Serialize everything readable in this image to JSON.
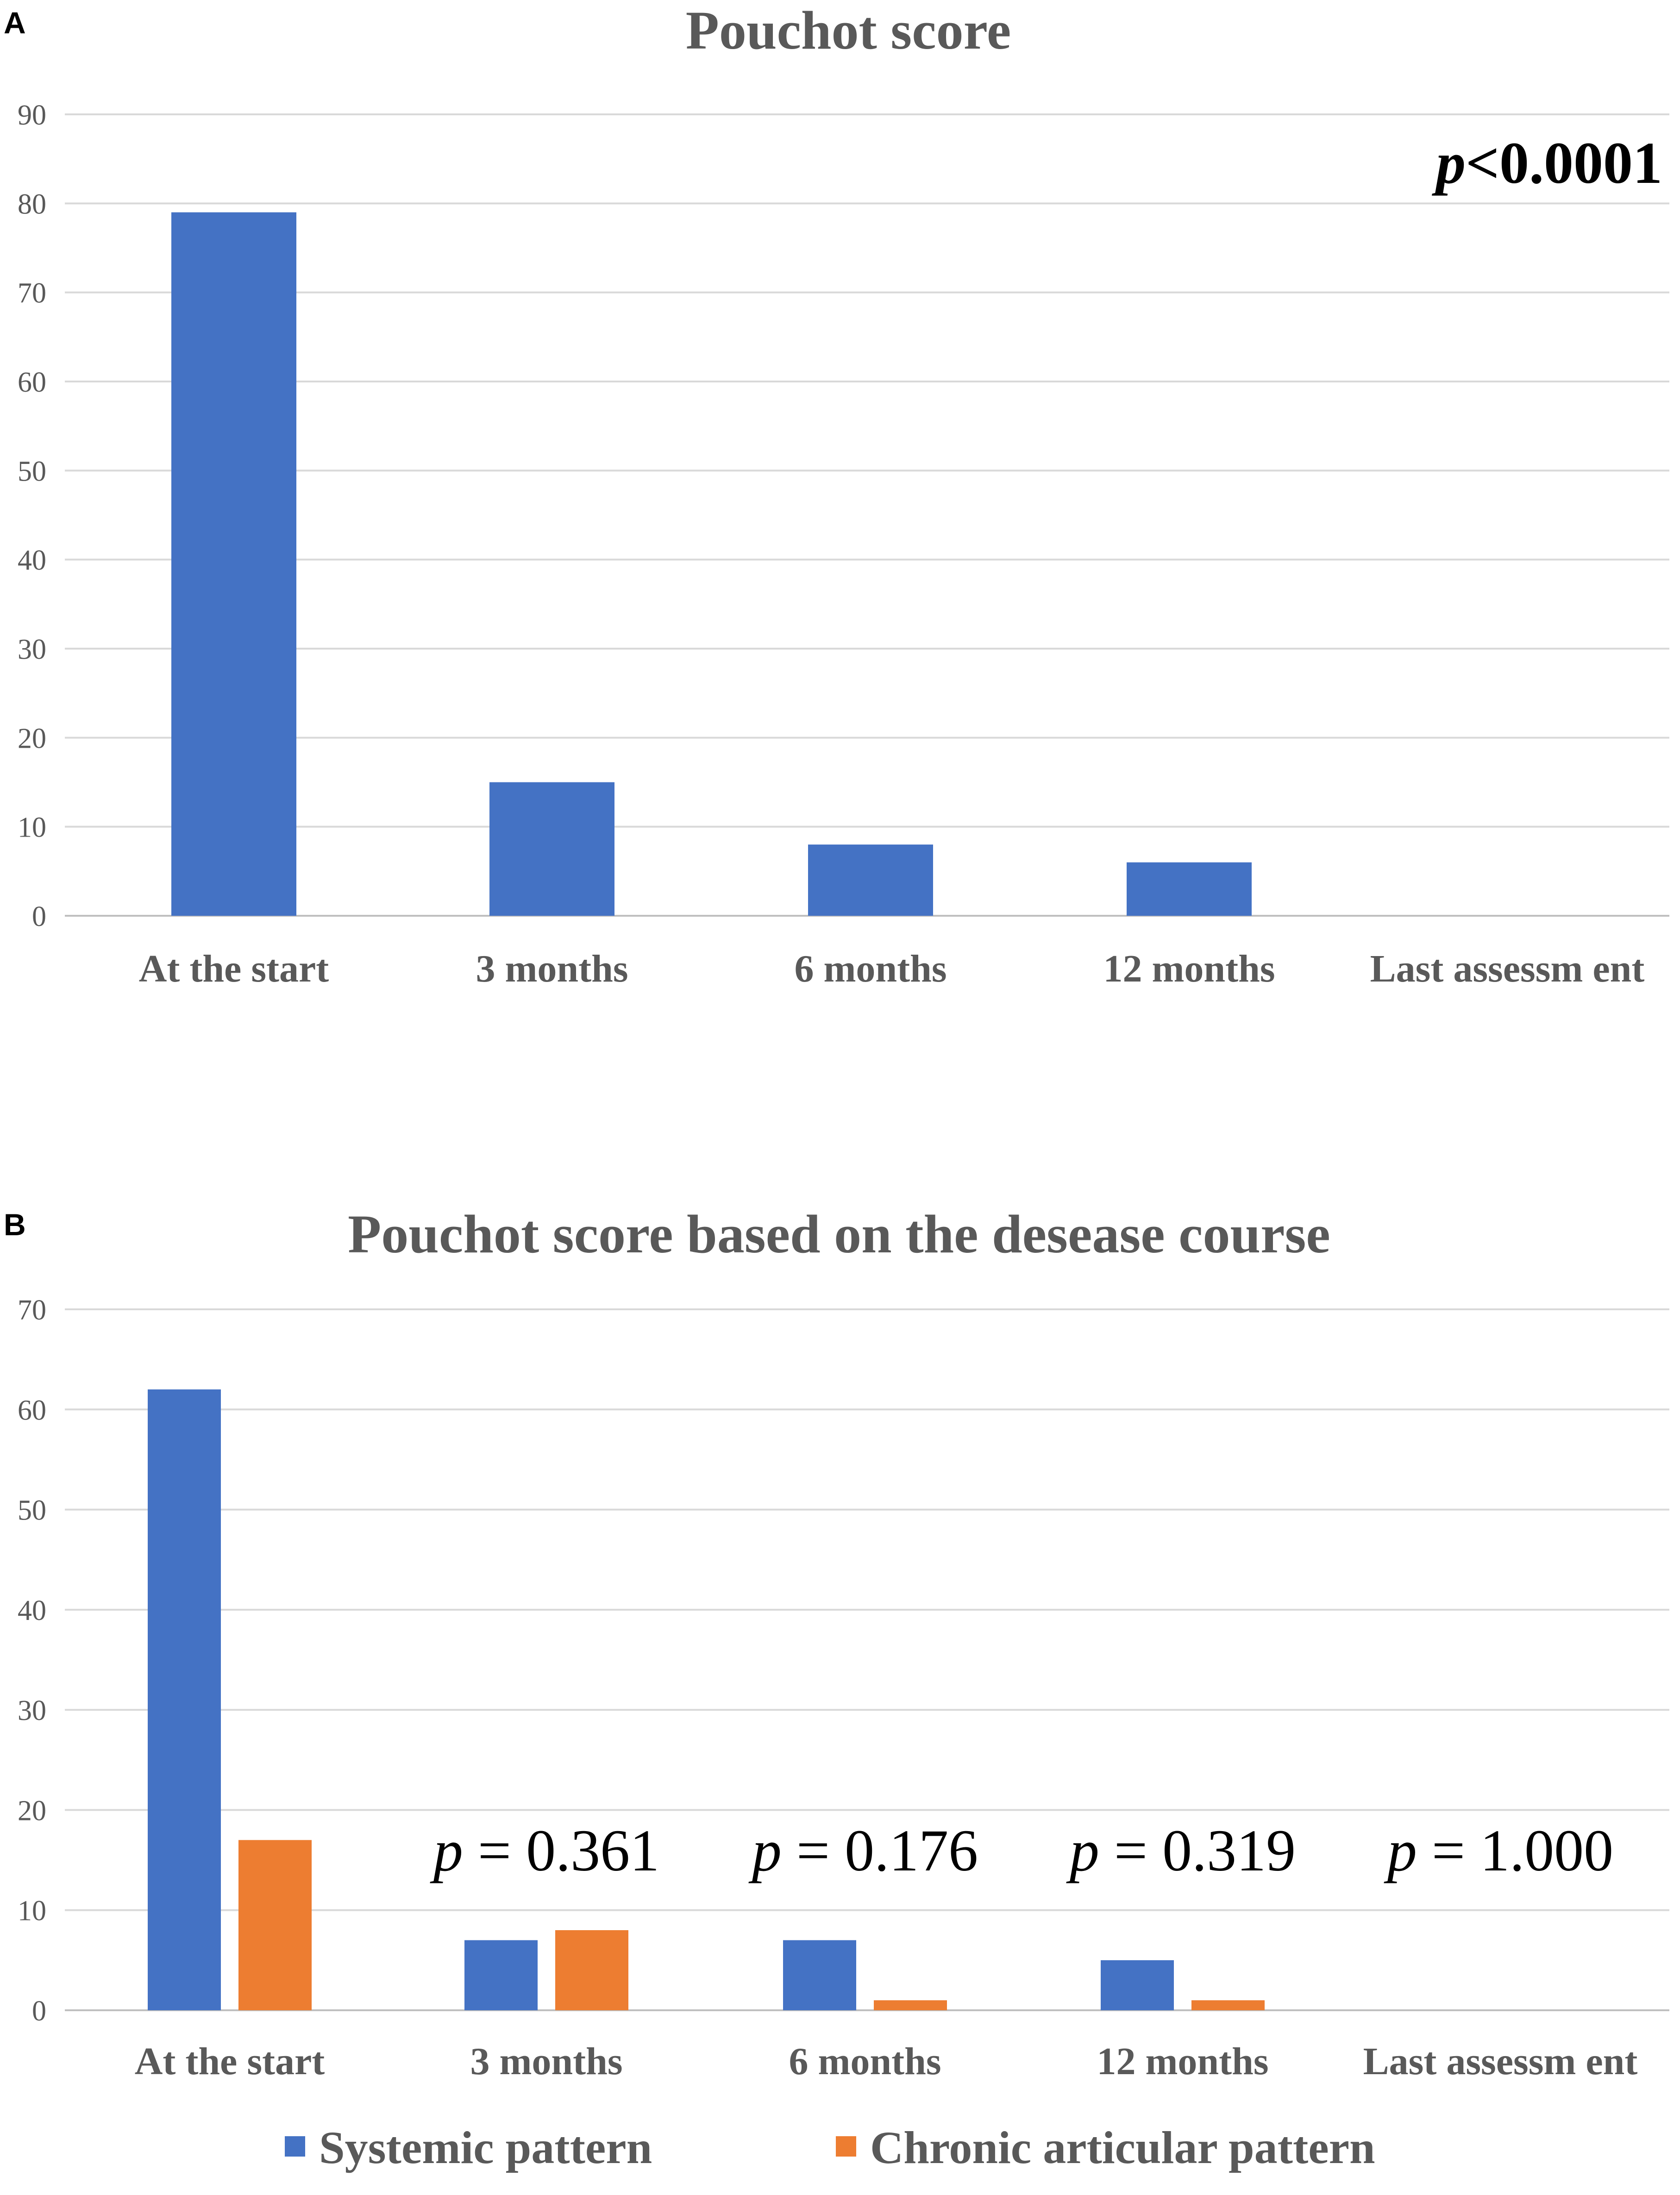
{
  "chart_data": [
    {
      "panel": "A",
      "type": "bar",
      "title": "Pouchot score",
      "categories": [
        "At the start",
        "3 months",
        "6 months",
        "12 months",
        "Last assessm ent"
      ],
      "series": [
        {
          "values": [
            79,
            15,
            8,
            6,
            0
          ],
          "color": "#4472c4"
        }
      ],
      "yticks": [
        "0",
        "10",
        "20",
        "30",
        "40",
        "50",
        "60",
        "70",
        "80",
        "90"
      ],
      "ylim": [
        0,
        90
      ],
      "grid": true,
      "legend": "none",
      "annotation": {
        "p_label": "p",
        "p_value": "<0.0001"
      }
    },
    {
      "panel": "B",
      "type": "bar",
      "title": "Pouchot score based on the desease course",
      "categories": [
        "At the start",
        "3 months",
        "6 months",
        "12 months",
        "Last assessm ent"
      ],
      "series": [
        {
          "name": "Systemic pattern",
          "values": [
            62,
            7,
            7,
            5,
            0
          ],
          "color": "#4472c4"
        },
        {
          "name": "Chronic articular pattern",
          "values": [
            17,
            8,
            1,
            1,
            0
          ],
          "color": "#ed7d31"
        }
      ],
      "yticks": [
        "0",
        "10",
        "20",
        "30",
        "40",
        "50",
        "60",
        "70"
      ],
      "ylim": [
        0,
        70
      ],
      "grid": true,
      "legend": "bottom",
      "annotations": [
        {
          "p_label": "p",
          "p_value": " = 0.361"
        },
        {
          "p_label": "p",
          "p_value": " = 0.176"
        },
        {
          "p_label": "p",
          "p_value": " = 0.319"
        },
        {
          "p_label": "p",
          "p_value": " = 1.000"
        }
      ]
    }
  ]
}
